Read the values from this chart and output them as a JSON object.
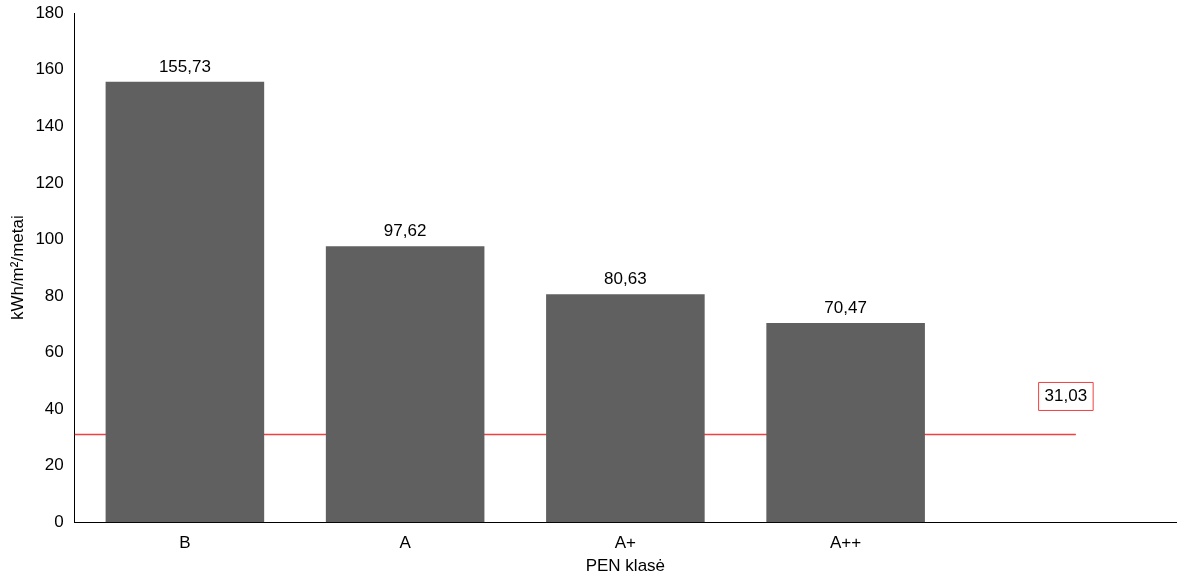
{
  "chart_data": {
    "type": "bar",
    "xlabel": "PEN klasė",
    "ylabel": "kWh/m²/metai",
    "categories": [
      "B",
      "A",
      "A+",
      "A++",
      null
    ],
    "values": [
      155.73,
      97.62,
      80.63,
      70.47,
      null
    ],
    "value_labels": [
      "155,73",
      "97,62",
      "80,63",
      "70,47",
      null
    ],
    "color": "#606060",
    "ylim": [
      0,
      180
    ],
    "yticks": [
      0,
      20,
      40,
      60,
      80,
      100,
      120,
      140,
      160,
      180
    ],
    "ref_lines": [
      {
        "axis": "y",
        "value": 31.03,
        "label": "31,03",
        "color": "#f04040"
      }
    ],
    "grid": false,
    "legend": false
  }
}
